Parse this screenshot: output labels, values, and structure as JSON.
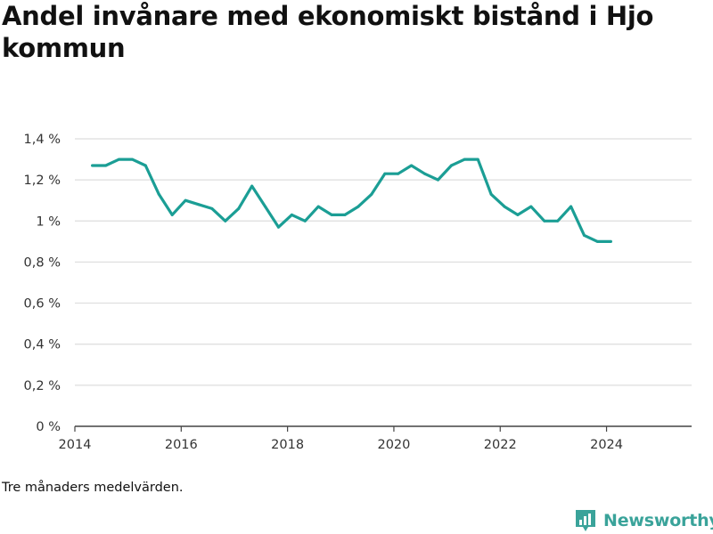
{
  "title": "Andel invånare med ekonomiskt bistånd i Hjo kommun",
  "note": "Tre månaders medelvärden.",
  "brand": {
    "name": "Newsworthy",
    "color": "#3aa39a"
  },
  "chart_data": {
    "type": "line",
    "title": "Andel invånare med ekonomiskt bistånd i Hjo kommun",
    "xlabel": "",
    "ylabel": "",
    "xlim": [
      2014,
      2025.6
    ],
    "ylim": [
      0,
      1.4
    ],
    "grid": true,
    "color": "#1b9e95",
    "x_ticks": [
      {
        "value": 2014,
        "label": "2014"
      },
      {
        "value": 2016,
        "label": "2016"
      },
      {
        "value": 2018,
        "label": "2018"
      },
      {
        "value": 2020,
        "label": "2020"
      },
      {
        "value": 2022,
        "label": "2022"
      },
      {
        "value": 2024,
        "label": "2024"
      }
    ],
    "y_ticks": [
      {
        "value": 0,
        "label": "0 %"
      },
      {
        "value": 0.2,
        "label": "0,2 %"
      },
      {
        "value": 0.4,
        "label": "0,4 %"
      },
      {
        "value": 0.6,
        "label": "0,6 %"
      },
      {
        "value": 0.8,
        "label": "0,8 %"
      },
      {
        "value": 1.0,
        "label": "1 %"
      },
      {
        "value": 1.2,
        "label": "1,2 %"
      },
      {
        "value": 1.4,
        "label": "1,4 %"
      }
    ],
    "series": [
      {
        "x": [
          2014.33,
          2014.58,
          2014.83,
          2015.08,
          2015.33,
          2015.58,
          2015.83,
          2016.08,
          2016.33,
          2016.58,
          2016.83,
          2017.08,
          2017.33,
          2017.58,
          2017.83,
          2018.08,
          2018.33,
          2018.58,
          2018.83,
          2019.08,
          2019.33,
          2019.58,
          2019.83,
          2020.08,
          2020.33,
          2020.58,
          2020.83,
          2021.08,
          2021.33,
          2021.58,
          2021.83,
          2022.08,
          2022.33,
          2022.58,
          2022.83,
          2023.08,
          2023.33,
          2023.58,
          2023.83,
          2024.08
        ],
        "values": [
          1.27,
          1.27,
          1.3,
          1.3,
          1.27,
          1.13,
          1.03,
          1.1,
          1.08,
          1.06,
          1.0,
          1.06,
          1.17,
          1.07,
          0.97,
          1.03,
          1.0,
          1.07,
          1.03,
          1.03,
          1.07,
          1.13,
          1.23,
          1.23,
          1.27,
          1.23,
          1.2,
          1.27,
          1.3,
          1.3,
          1.13,
          1.07,
          1.03,
          1.07,
          1.0,
          1.0,
          1.07,
          0.93,
          0.9,
          0.9
        ]
      }
    ]
  }
}
